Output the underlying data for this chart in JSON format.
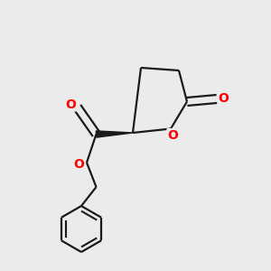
{
  "background_color": "#ebebeb",
  "bond_color": "#1a1a1a",
  "oxygen_color": "#ff0000",
  "bond_width": 1.6,
  "figsize": [
    3.0,
    3.0
  ],
  "dpi": 100,
  "xlim": [
    0.0,
    1.0
  ],
  "ylim": [
    0.0,
    1.0
  ]
}
